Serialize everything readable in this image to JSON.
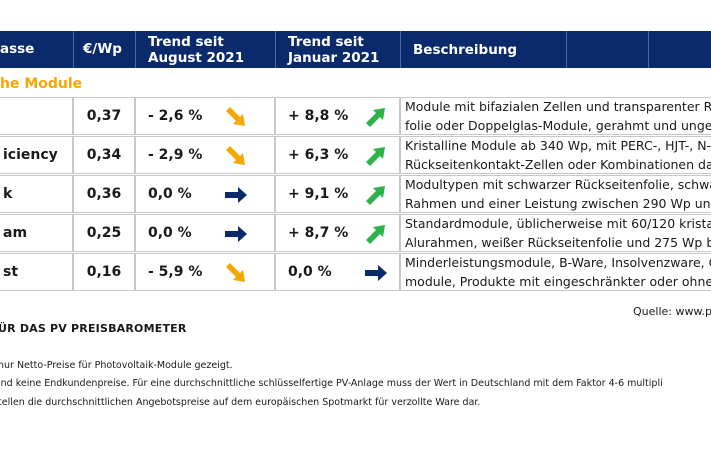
{
  "header": {
    "col1": "asse",
    "col2": "€/Wp",
    "col3_line1": "Trend seit",
    "col3_line2": "August 2021",
    "col4_line1": "Trend seit",
    "col4_line2": "Januar 2021",
    "col5": "Beschreibung"
  },
  "section_title": "he Module",
  "rows": [
    {
      "name": "",
      "price": "0,37",
      "aug": "- 2,6 %",
      "aug_trend": "down",
      "jan": "+ 8,8 %",
      "jan_trend": "up",
      "desc1": "Module mit bifazialen Zellen und transparenter Rü",
      "desc2": "folie oder Doppelglas-Module, gerahmt und unger"
    },
    {
      "name": "iciency",
      "price": "0,34",
      "aug": "- 2,9 %",
      "aug_trend": "down",
      "jan": "+ 6,3 %",
      "jan_trend": "up",
      "desc1": "Kristalline Module ab 340 Wp, mit PERC-, HJT-, N-",
      "desc2": "Rückseitenkontakt-Zellen oder Kombinationen dar"
    },
    {
      "name": "k",
      "price": "0,36",
      "aug": "0,0 %",
      "aug_trend": "flat",
      "jan": "+ 9,1 %",
      "jan_trend": "up",
      "desc1": "Modultypen mit schwarzer Rückseitenfolie, schwar",
      "desc2": "Rahmen und einer Leistung  zwischen 290 Wp und"
    },
    {
      "name": "am",
      "price": "0,25",
      "aug": "0,0 %",
      "aug_trend": "flat",
      "jan": "+ 8,7 %",
      "jan_trend": "up",
      "desc1": "Standardmodule, üblicherweise mit 60/120 kristalli",
      "desc2": "Alurahmen, weißer Rückseitenfolie und 275 Wp bi"
    },
    {
      "name": "st",
      "price": "0,16",
      "aug": "- 5,9 %",
      "aug_trend": "down",
      "jan": "0,0 %",
      "jan_trend": "flat",
      "desc1": "Minderleistungsmodule, B-Ware, Insolvenzware, G",
      "desc2": "module, Produkte mit eingeschränkter oder ohne"
    }
  ],
  "source": "Quelle: www.pv",
  "footnote_title": "ÜR DAS PV PREISBAROMETER",
  "footnotes": [
    "nur Netto-Preise für Photovoltaik-Module gezeigt.",
    "ind keine Endkundenpreise. Für eine durchschnittliche schlüsselfertige PV-Anlage muss der Wert in Deutschland mit dem Faktor 4-6 multipli",
    "tellen die durchschnittlichen Angebotspreise auf dem europäischen Spotmarkt für verzollte Ware dar."
  ],
  "colors": {
    "header_bg": "#0b2a6b",
    "section": "#f5a800",
    "down_arrow": "#f5a800",
    "up_arrow": "#2db34a",
    "flat_arrow": "#0b2a6b"
  }
}
